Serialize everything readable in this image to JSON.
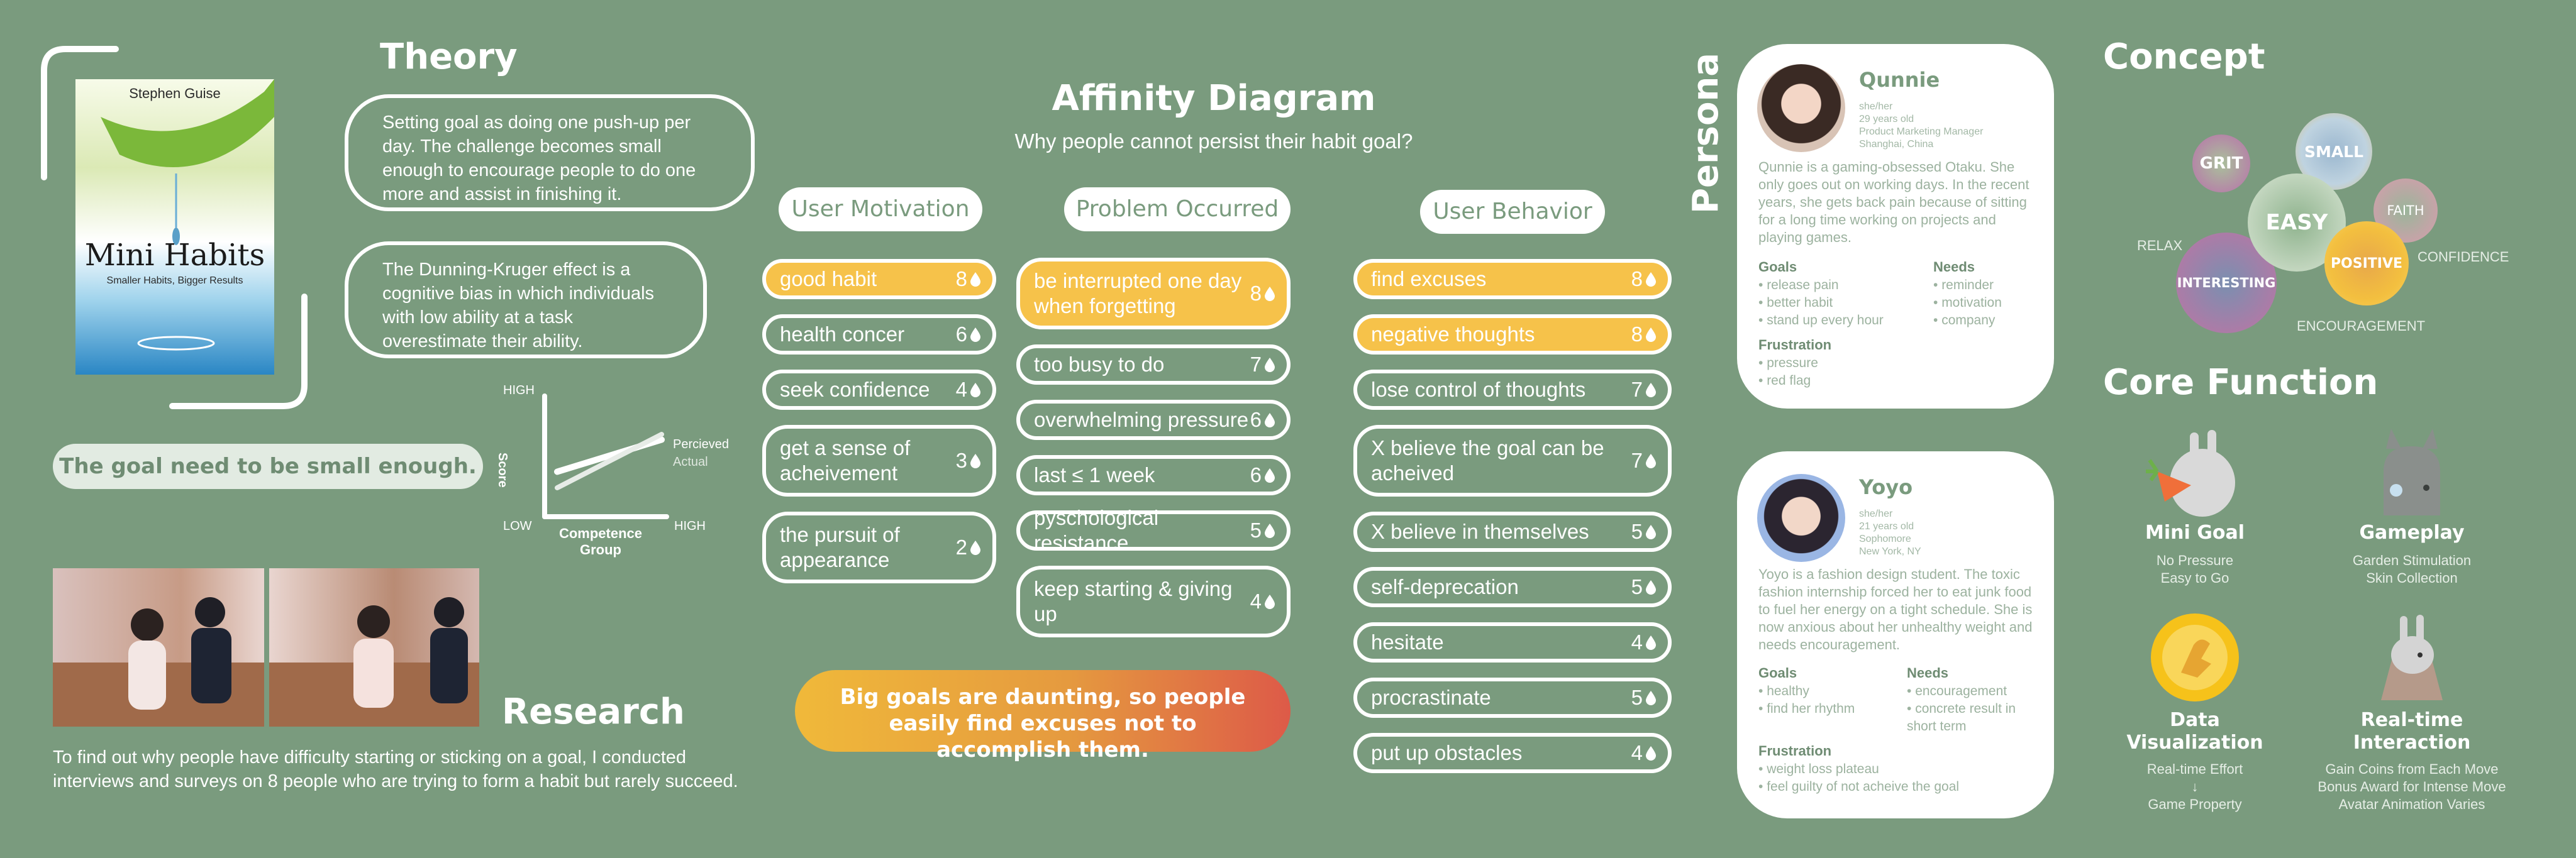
{
  "theory": {
    "title": "Theory",
    "book": {
      "author": "Stephen Guise",
      "title": "Mini Habits",
      "subtitle": "Smaller Habits, Bigger Results"
    },
    "bubble1": "Setting goal as doing one push-up per day. The challenge becomes small enough to encourage people to do one more and assist in finishing it.",
    "bubble2": "The Dunning-Kruger effect is a cognitive bias in which individuals with low ability at a task overestimate their ability.",
    "conclusion": "The goal need to be small enough."
  },
  "dk_chart": {
    "type": "line",
    "ylabel": "Score",
    "xlabel": "Competence Group",
    "x_tick_low": "LOW",
    "x_tick_high": "HIGH",
    "y_tick_high": "HIGH",
    "series": [
      {
        "name": "Percieved",
        "x": [
          0,
          1
        ],
        "y": [
          0.35,
          0.65
        ],
        "color": "#ffffff"
      },
      {
        "name": "Actual",
        "x": [
          0,
          1
        ],
        "y": [
          0.2,
          0.7
        ],
        "color": "#e7ece7"
      }
    ]
  },
  "research": {
    "title": "Research",
    "text": "To find out why people have difficulty starting or sticking on a goal, I conducted interviews and surveys on 8 people who are trying to form a habit but rarely succeed."
  },
  "affinity": {
    "title": "Affinity Diagram",
    "question": "Why people cannot persist their habit goal?",
    "columns": [
      {
        "header": "User Motivation",
        "items": [
          {
            "label": "good habit",
            "count": "8",
            "highlight": true
          },
          {
            "label": "health concer",
            "count": "6",
            "highlight": false
          },
          {
            "label": "seek confidence",
            "count": "4",
            "highlight": false
          },
          {
            "label": "get a sense of acheivement",
            "count": "3",
            "highlight": false
          },
          {
            "label": "the pursuit of appearance",
            "count": "2",
            "highlight": false
          }
        ]
      },
      {
        "header": "Problem Occurred",
        "items": [
          {
            "label": "be interrupted one day when forgetting",
            "count": "8",
            "highlight": true
          },
          {
            "label": "too busy to do",
            "count": "7",
            "highlight": false
          },
          {
            "label": "overwhelming pressure",
            "count": "6",
            "highlight": false
          },
          {
            "label": "last ≤ 1 week",
            "count": "6",
            "highlight": false
          },
          {
            "label": "pyschological resistance",
            "count": "5",
            "highlight": false
          },
          {
            "label": "keep starting & giving up",
            "count": "4",
            "highlight": false
          }
        ]
      },
      {
        "header": "User Behavior",
        "items": [
          {
            "label": "find excuses",
            "count": "8",
            "highlight": true
          },
          {
            "label": "negative thoughts",
            "count": "8",
            "highlight": true
          },
          {
            "label": "lose control of thoughts",
            "count": "7",
            "highlight": false
          },
          {
            "label": "X believe the goal can be acheived",
            "count": "7",
            "highlight": false
          },
          {
            "label": "X believe in themselves",
            "count": "5",
            "highlight": false
          },
          {
            "label": "self-deprecation",
            "count": "5",
            "highlight": false
          },
          {
            "label": "hesitate",
            "count": "4",
            "highlight": false
          },
          {
            "label": "procrastinate",
            "count": "5",
            "highlight": false
          },
          {
            "label": "put up obstacles",
            "count": "4",
            "highlight": false
          }
        ]
      }
    ],
    "conclusion": "Big goals are daunting, so people easily find excuses not to accomplish them."
  },
  "persona": {
    "title": "Persona",
    "people": [
      {
        "name": "Qunnie",
        "pronoun": "she/her",
        "age": "29 years old",
        "job": "Product Marketing Manager",
        "location": "Shanghai, China",
        "desc": "Qunnie is a gaming-obsessed Otaku. She only goes out on working days. In the recent years, she gets back pain because of sitting for a long time working on projects and playing games.",
        "goals_label": "Goals",
        "goals": [
          "release pain",
          "better habit",
          "stand up every hour"
        ],
        "needs_label": "Needs",
        "needs": [
          "reminder",
          "motivation",
          "company"
        ],
        "frustration_label": "Frustration",
        "frustrations": [
          "pressure",
          "red flag"
        ]
      },
      {
        "name": "Yoyo",
        "pronoun": "she/her",
        "age": "21 years old",
        "job": "Sophomore",
        "location": "New York, NY",
        "desc": "Yoyo is a fashion design student. The toxic fashion internship forced her to eat junk food to fuel her energy on a tight schedule. She is now anxious about her unhealthy weight and needs encouragement.",
        "goals_label": "Goals",
        "goals": [
          "healthy",
          "find her rhythm"
        ],
        "needs_label": "Needs",
        "needs": [
          "encouragement",
          "concrete result in short term"
        ],
        "frustration_label": "Frustration",
        "frustrations": [
          "weight loss plateau",
          "feel guilty of not acheive the goal"
        ]
      }
    ]
  },
  "concept": {
    "title": "Concept",
    "bubbles": {
      "grit": "GRIT",
      "small": "SMALL",
      "easy": "EASY",
      "faith": "FAITH",
      "positive": "POSITIVE",
      "interesting": "INTERESTING"
    },
    "labels": {
      "relax": "RELAX",
      "confidence": "CONFIDENCE",
      "encouragement": "ENCOURAGEMENT"
    }
  },
  "core": {
    "title": "Core Function",
    "items": [
      {
        "title": "Mini Goal",
        "lines": [
          "No Pressure",
          "Easy to Go"
        ]
      },
      {
        "title": "Gameplay",
        "lines": [
          "Garden Stimulation",
          "Skin Collection"
        ]
      },
      {
        "title": "Data Visualization",
        "lines": [
          "Real-time Effort",
          "↓",
          "Game Property"
        ]
      },
      {
        "title": "Real-time Interaction",
        "lines": [
          "Gain Coins from Each Move",
          "Bonus Award for Intense Move",
          "Avatar Animation Varies"
        ]
      }
    ]
  },
  "colors": {
    "background": "#7a9b7e",
    "accent_yellow": "#f6c24a",
    "gradient_end": "#e0584a",
    "white": "#ffffff"
  }
}
